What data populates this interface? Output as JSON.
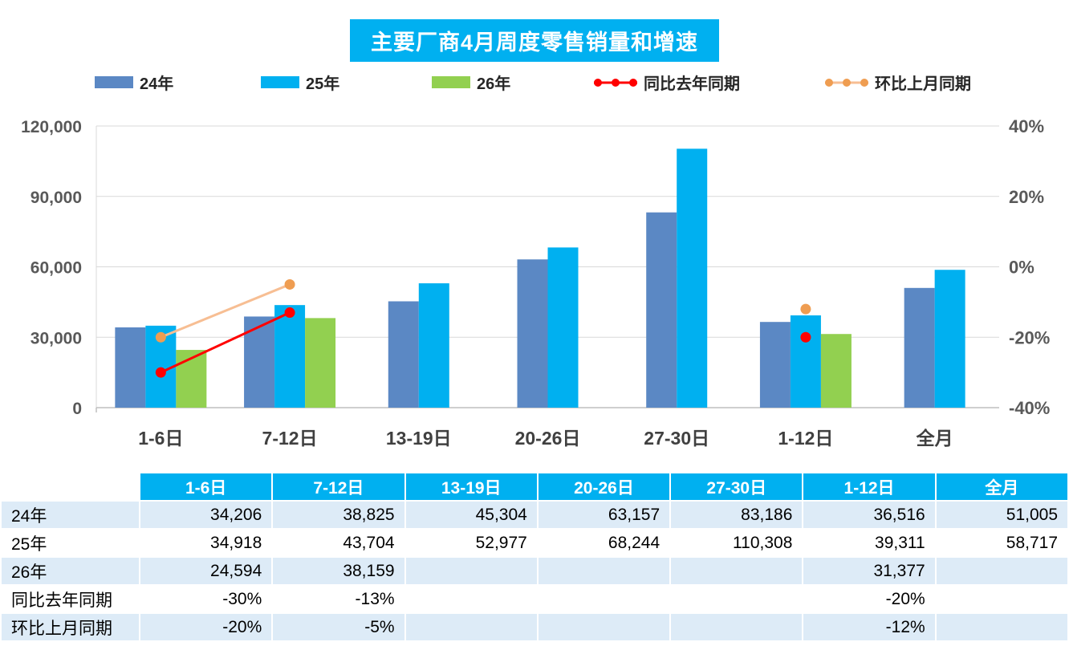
{
  "title": "主要厂商4月周度零售销量和增速",
  "legend": {
    "items": [
      {
        "label": "24年",
        "type": "bar",
        "color": "#5B88C4"
      },
      {
        "label": "25年",
        "type": "bar",
        "color": "#00B0F0"
      },
      {
        "label": "26年",
        "type": "bar",
        "color": "#92D050"
      },
      {
        "label": "同比去年同期",
        "type": "line",
        "color": "#FF0000",
        "marker_color": "#FF0000"
      },
      {
        "label": "环比上月同期",
        "type": "line",
        "color": "#F7BE93",
        "marker_color": "#EF9D51"
      }
    ]
  },
  "chart_data": {
    "type": "bar+line",
    "title": "主要厂商4月周度零售销量和增速",
    "categories": [
      "1-6日",
      "7-12日",
      "13-19日",
      "20-26日",
      "27-30日",
      "1-12日",
      "全月"
    ],
    "bar_series": [
      {
        "name": "24年",
        "color": "#5B88C4",
        "values": [
          34206,
          38825,
          45304,
          63157,
          83186,
          36516,
          51005
        ]
      },
      {
        "name": "25年",
        "color": "#00B0F0",
        "values": [
          34918,
          43704,
          52977,
          68244,
          110308,
          39311,
          58717
        ]
      },
      {
        "name": "26年",
        "color": "#92D050",
        "values": [
          24594,
          38159,
          null,
          null,
          null,
          31377,
          null
        ]
      }
    ],
    "line_series": [
      {
        "name": "同比去年同期",
        "color": "#FF0000",
        "marker_color": "#FF0000",
        "values_pct": [
          -30,
          -13,
          null,
          null,
          null,
          -20,
          null
        ]
      },
      {
        "name": "环比上月同期",
        "color": "#F7BE93",
        "marker_color": "#EF9D51",
        "values_pct": [
          -20,
          -5,
          null,
          null,
          null,
          -12,
          null
        ]
      }
    ],
    "y_left": {
      "min": 0,
      "max": 120000,
      "ticks": [
        {
          "value": 0,
          "label": "0"
        },
        {
          "value": 30000,
          "label": "30,000"
        },
        {
          "value": 60000,
          "label": "60,000"
        },
        {
          "value": 90000,
          "label": "90,000"
        },
        {
          "value": 120000,
          "label": "120,000"
        }
      ]
    },
    "y_right": {
      "min": -40,
      "max": 40,
      "ticks": [
        {
          "value": -40,
          "label": "-40%"
        },
        {
          "value": -20,
          "label": "-20%"
        },
        {
          "value": 0,
          "label": "0%"
        },
        {
          "value": 20,
          "label": "20%"
        },
        {
          "value": 40,
          "label": "40%"
        }
      ]
    },
    "grid": true,
    "legend_position": "top"
  },
  "table": {
    "columns": [
      "1-6日",
      "7-12日",
      "13-19日",
      "20-26日",
      "27-30日",
      "1-12日",
      "全月"
    ],
    "rows": [
      {
        "label": "24年",
        "values": [
          "34,206",
          "38,825",
          "45,304",
          "63,157",
          "83,186",
          "36,516",
          "51,005"
        ]
      },
      {
        "label": "25年",
        "values": [
          "34,918",
          "43,704",
          "52,977",
          "68,244",
          "110,308",
          "39,311",
          "58,717"
        ]
      },
      {
        "label": "26年",
        "values": [
          "24,594",
          "38,159",
          "",
          "",
          "",
          "31,377",
          ""
        ]
      },
      {
        "label": "同比去年同期",
        "values": [
          "-30%",
          "-13%",
          "",
          "",
          "",
          "-20%",
          ""
        ]
      },
      {
        "label": "环比上月同期",
        "values": [
          "-20%",
          "-5%",
          "",
          "",
          "",
          "-12%",
          ""
        ]
      }
    ]
  },
  "colors": {
    "title_bg": "#00B0F0",
    "title_text": "#FFFFFF",
    "table_header_bg": "#00B0F0",
    "table_header_text": "#FFFFFF",
    "table_row_alt_bg": "#DDEBF7",
    "table_row_bg": "#FFFFFF",
    "axis_label": "#595959",
    "x_label": "#404040",
    "gridline": "#D9D9D9"
  }
}
